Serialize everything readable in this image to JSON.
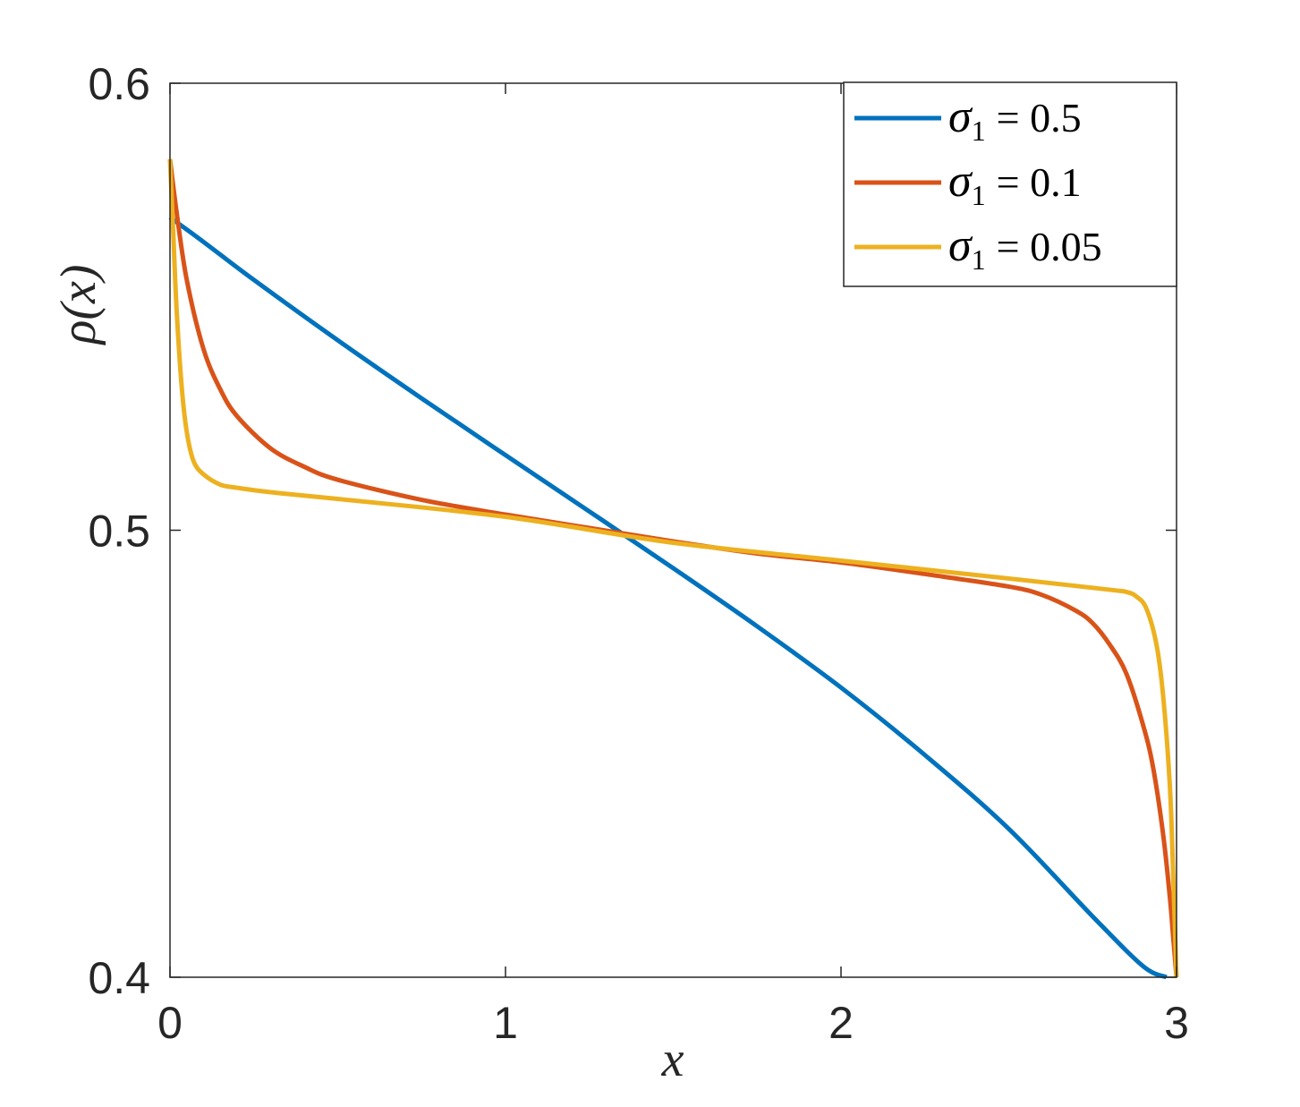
{
  "chart_data": {
    "type": "line",
    "xlabel": "x",
    "ylabel": "ρ(x)",
    "xlim": [
      0,
      3
    ],
    "ylim": [
      0.4,
      0.6
    ],
    "xticks": [
      0,
      1,
      2,
      3
    ],
    "xtick_labels": [
      "0",
      "1",
      "2",
      "3"
    ],
    "yticks": [
      0.4,
      0.5,
      0.6
    ],
    "ytick_labels": [
      "0.4",
      "0.5",
      "0.6"
    ],
    "grid": false,
    "legend_position": "top-right",
    "series": [
      {
        "name": "σ1 = 0.5",
        "legend_var": "σ",
        "legend_sub": "1",
        "legend_val": "= 0.5",
        "color": "#0072BD",
        "x": [
          0,
          0.1,
          0.25,
          0.5,
          0.75,
          1.0,
          1.25,
          1.5,
          1.75,
          2.0,
          2.25,
          2.5,
          2.75,
          2.9,
          2.97
        ],
        "y": [
          0.57,
          0.5645,
          0.556,
          0.5425,
          0.5295,
          0.5168,
          0.5042,
          0.4915,
          0.4785,
          0.4648,
          0.4497,
          0.4332,
          0.4136,
          0.4025,
          0.4
        ]
      },
      {
        "name": "σ1 = 0.1",
        "legend_var": "σ",
        "legend_sub": "1",
        "legend_val": "= 0.1",
        "color": "#D95319",
        "x": [
          0,
          0.02,
          0.05,
          0.1,
          0.15,
          0.2,
          0.3,
          0.4,
          0.5,
          0.75,
          1.0,
          1.25,
          1.5,
          1.75,
          2.0,
          2.25,
          2.5,
          2.6,
          2.7,
          2.75,
          2.8,
          2.85,
          2.9,
          2.93,
          2.96,
          2.98,
          2.99,
          3.0
        ],
        "y": [
          0.583,
          0.571,
          0.556,
          0.5405,
          0.5315,
          0.5255,
          0.5183,
          0.5142,
          0.5113,
          0.5068,
          0.5035,
          0.5005,
          0.4975,
          0.4948,
          0.4928,
          0.4902,
          0.4874,
          0.4855,
          0.482,
          0.4792,
          0.4745,
          0.468,
          0.4565,
          0.447,
          0.432,
          0.418,
          0.409,
          0.4
        ]
      },
      {
        "name": "σ1 = 0.05",
        "legend_var": "σ",
        "legend_sub": "1",
        "legend_val": "= 0.05",
        "color": "#EDB120",
        "x": [
          0,
          0.01,
          0.02,
          0.035,
          0.05,
          0.07,
          0.1,
          0.15,
          0.2,
          0.3,
          0.5,
          1.0,
          1.5,
          2.0,
          2.5,
          2.8,
          2.85,
          2.88,
          2.91,
          2.94,
          2.96,
          2.98,
          2.99,
          3.0
        ],
        "y": [
          0.583,
          0.566,
          0.549,
          0.532,
          0.522,
          0.5155,
          0.5125,
          0.5102,
          0.5095,
          0.5085,
          0.507,
          0.503,
          0.4972,
          0.4932,
          0.4892,
          0.4867,
          0.4862,
          0.4852,
          0.4825,
          0.4745,
          0.463,
          0.443,
          0.423,
          0.4
        ]
      }
    ]
  }
}
